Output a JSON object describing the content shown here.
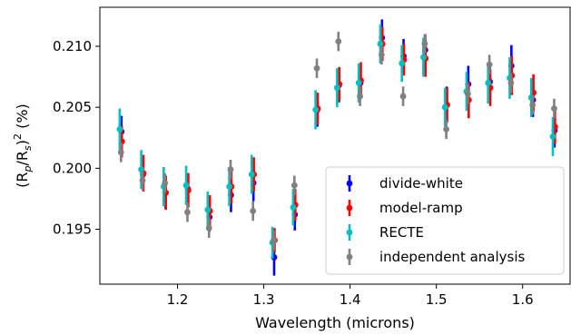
{
  "chart_data": {
    "type": "scatter",
    "title": "",
    "xlabel": "Wavelength (microns)",
    "ylabel_parts": [
      "(R",
      "p",
      "/R",
      "s",
      ")",
      "2",
      " (%)"
    ],
    "xlim": [
      1.11,
      1.655
    ],
    "ylim": [
      0.1905,
      0.2132
    ],
    "xticks": [
      1.2,
      1.3,
      1.4,
      1.5,
      1.6
    ],
    "xtick_labels": [
      "1.2",
      "1.3",
      "1.4",
      "1.5",
      "1.6"
    ],
    "yticks": [
      0.195,
      0.2,
      0.205,
      0.21
    ],
    "ytick_labels": [
      "0.195",
      "0.200",
      "0.205",
      "0.210"
    ],
    "legend": {
      "position": "lower-right"
    },
    "series": [
      {
        "name": "divide-white",
        "color": "#0000ff",
        "x": [
          1.135,
          1.16,
          1.186,
          1.212,
          1.237,
          1.262,
          1.288,
          1.312,
          1.336,
          1.362,
          1.387,
          1.412,
          1.437,
          1.462,
          1.487,
          1.512,
          1.537,
          1.562,
          1.587,
          1.612,
          1.637
        ],
        "y": [
          0.203,
          0.1995,
          0.198,
          0.1983,
          0.196,
          0.1978,
          0.1988,
          0.1927,
          0.1962,
          0.2048,
          0.2068,
          0.207,
          0.2107,
          0.2092,
          0.2097,
          0.2052,
          0.2069,
          0.2071,
          0.2084,
          0.2056,
          0.2031
        ],
        "err": [
          0.0013,
          0.0013,
          0.0013,
          0.0013,
          0.0012,
          0.0014,
          0.0015,
          0.0015,
          0.0013,
          0.0014,
          0.0014,
          0.0013,
          0.0015,
          0.0014,
          0.0013,
          0.0015,
          0.0015,
          0.0015,
          0.0017,
          0.0014,
          0.0014
        ]
      },
      {
        "name": "model-ramp",
        "color": "#ff0000",
        "x": [
          1.1355,
          1.1605,
          1.1865,
          1.2125,
          1.2375,
          1.2625,
          1.2885,
          1.3125,
          1.3365,
          1.3625,
          1.3875,
          1.4125,
          1.4375,
          1.4625,
          1.4875,
          1.5125,
          1.5375,
          1.5625,
          1.5875,
          1.6125,
          1.6375
        ],
        "y": [
          0.2022,
          0.1996,
          0.198,
          0.1982,
          0.1965,
          0.1985,
          0.1995,
          0.1941,
          0.197,
          0.2049,
          0.2069,
          0.2072,
          0.2102,
          0.2089,
          0.209,
          0.2052,
          0.2056,
          0.2066,
          0.2076,
          0.2062,
          0.2034
        ],
        "err": [
          0.0013,
          0.0015,
          0.0014,
          0.0014,
          0.0013,
          0.0014,
          0.0014,
          0.001,
          0.0013,
          0.0013,
          0.0014,
          0.0015,
          0.0014,
          0.0013,
          0.0015,
          0.0014,
          0.0015,
          0.0015,
          0.0016,
          0.0015,
          0.0014
        ]
      },
      {
        "name": "RECTE",
        "color": "#00bfbf",
        "x": [
          1.133,
          1.158,
          1.184,
          1.21,
          1.235,
          1.26,
          1.286,
          1.31,
          1.334,
          1.36,
          1.385,
          1.41,
          1.435,
          1.46,
          1.485,
          1.51,
          1.535,
          1.56,
          1.585,
          1.61,
          1.635
        ],
        "y": [
          0.2032,
          0.1999,
          0.1985,
          0.1986,
          0.1966,
          0.1985,
          0.1995,
          0.1939,
          0.1968,
          0.2048,
          0.2066,
          0.207,
          0.2102,
          0.2086,
          0.2091,
          0.205,
          0.2063,
          0.207,
          0.2074,
          0.2058,
          0.2026
        ],
        "err": [
          0.0017,
          0.0016,
          0.0016,
          0.0016,
          0.0015,
          0.0016,
          0.0016,
          0.0013,
          0.0015,
          0.0016,
          0.0016,
          0.0016,
          0.0016,
          0.0015,
          0.0016,
          0.0016,
          0.0016,
          0.0017,
          0.0017,
          0.0016,
          0.0016
        ]
      },
      {
        "name": "independent analysis",
        "color": "#808080",
        "x": [
          1.1345,
          1.1595,
          1.1855,
          1.2115,
          1.2365,
          1.2615,
          1.2875,
          1.3115,
          1.3355,
          1.3615,
          1.3865,
          1.4115,
          1.4365,
          1.4615,
          1.4865,
          1.5115,
          1.5365,
          1.5615,
          1.5865,
          1.6115,
          1.6365
        ],
        "y": [
          0.2013,
          0.199,
          0.1988,
          0.1964,
          0.1951,
          0.1999,
          0.1965,
          0.1941,
          0.1986,
          0.2082,
          0.2104,
          0.2059,
          0.2093,
          0.2059,
          0.2102,
          0.2032,
          0.2061,
          0.2085,
          0.207,
          0.2052,
          0.2049
        ],
        "err": [
          0.0008,
          0.0008,
          0.0008,
          0.0008,
          0.0008,
          0.0008,
          0.0008,
          0.0008,
          0.0008,
          0.0008,
          0.0008,
          0.0008,
          0.0008,
          0.0008,
          0.0008,
          0.0008,
          0.0008,
          0.0008,
          0.0008,
          0.0008,
          0.0008
        ]
      }
    ]
  }
}
